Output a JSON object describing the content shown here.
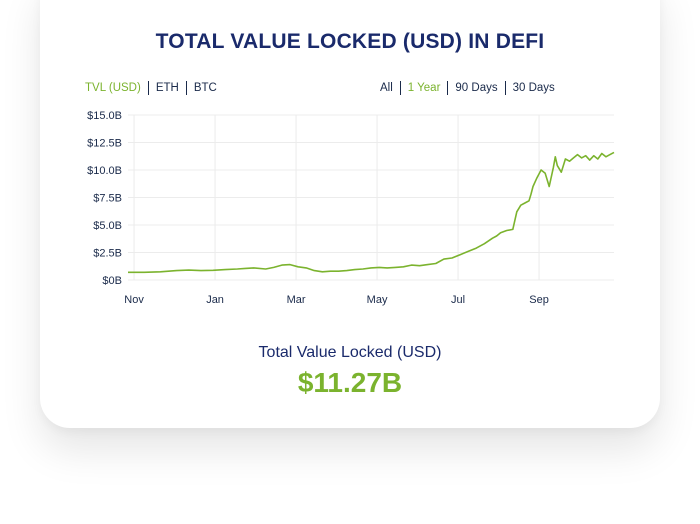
{
  "header": {
    "title": "TOTAL VALUE LOCKED (USD) IN DEFI"
  },
  "asset_tabs": [
    {
      "label": "TVL (USD)",
      "active": true
    },
    {
      "label": "ETH",
      "active": false
    },
    {
      "label": "BTC",
      "active": false
    }
  ],
  "range_tabs": [
    {
      "label": "All",
      "active": false
    },
    {
      "label": "1 Year",
      "active": true
    },
    {
      "label": "90 Days",
      "active": false
    },
    {
      "label": "30 Days",
      "active": false
    }
  ],
  "summary": {
    "label": "Total Value Locked (USD)",
    "value": "$11.27B"
  },
  "colors": {
    "line": "#7bb32e",
    "title": "#1a2a6b",
    "grid": "#ececec"
  },
  "chart_data": {
    "type": "line",
    "title": "TOTAL VALUE LOCKED (USD) IN DEFI",
    "xlabel": "",
    "ylabel": "",
    "ylim": [
      0,
      15
    ],
    "y_ticks": [
      {
        "value": 0,
        "label": "$0B"
      },
      {
        "value": 2.5,
        "label": "$2.5B"
      },
      {
        "value": 5,
        "label": "$5.0B"
      },
      {
        "value": 7.5,
        "label": "$7.5B"
      },
      {
        "value": 10,
        "label": "$10.0B"
      },
      {
        "value": 12.5,
        "label": "$12.5B"
      },
      {
        "value": 15,
        "label": "$15.0B"
      }
    ],
    "xlim": [
      0,
      12
    ],
    "x_ticks": [
      {
        "value": 0.15,
        "label": "Nov"
      },
      {
        "value": 2.15,
        "label": "Jan"
      },
      {
        "value": 4.15,
        "label": "Mar"
      },
      {
        "value": 6.15,
        "label": "May"
      },
      {
        "value": 8.15,
        "label": "Jul"
      },
      {
        "value": 10.15,
        "label": "Sep"
      }
    ],
    "grid": true,
    "series": [
      {
        "name": "",
        "x": [
          0,
          0.4,
          0.8,
          1.2,
          1.5,
          1.8,
          2.1,
          2.4,
          2.7,
          2.9,
          3.1,
          3.4,
          3.6,
          3.8,
          4.0,
          4.2,
          4.4,
          4.6,
          4.8,
          5.0,
          5.2,
          5.4,
          5.6,
          5.8,
          6.0,
          6.2,
          6.4,
          6.6,
          6.8,
          7.0,
          7.2,
          7.4,
          7.6,
          7.8,
          8.0,
          8.2,
          8.4,
          8.6,
          8.8,
          9.0,
          9.1,
          9.2,
          9.35,
          9.5,
          9.6,
          9.7,
          9.8,
          9.9,
          9.95,
          10.0,
          10.1,
          10.2,
          10.3,
          10.4,
          10.5,
          10.55,
          10.6,
          10.7,
          10.8,
          10.9,
          11.0,
          11.1,
          11.2,
          11.3,
          11.4,
          11.5,
          11.6,
          11.7,
          11.8,
          11.9,
          12.0
        ],
        "values": [
          0.7,
          0.7,
          0.75,
          0.85,
          0.9,
          0.85,
          0.88,
          0.95,
          1.0,
          1.05,
          1.1,
          1.0,
          1.15,
          1.35,
          1.4,
          1.2,
          1.1,
          0.85,
          0.75,
          0.8,
          0.8,
          0.85,
          0.95,
          1.0,
          1.1,
          1.15,
          1.1,
          1.15,
          1.2,
          1.35,
          1.3,
          1.4,
          1.5,
          1.9,
          2.0,
          2.3,
          2.6,
          2.9,
          3.3,
          3.8,
          4.0,
          4.3,
          4.5,
          4.6,
          6.2,
          6.8,
          7.0,
          7.2,
          7.8,
          8.5,
          9.3,
          10.0,
          9.7,
          8.5,
          10.2,
          11.2,
          10.4,
          9.8,
          11.0,
          10.8,
          11.1,
          11.4,
          11.1,
          11.3,
          10.9,
          11.3,
          11.0,
          11.5,
          11.2,
          11.4,
          11.6
        ]
      }
    ]
  }
}
